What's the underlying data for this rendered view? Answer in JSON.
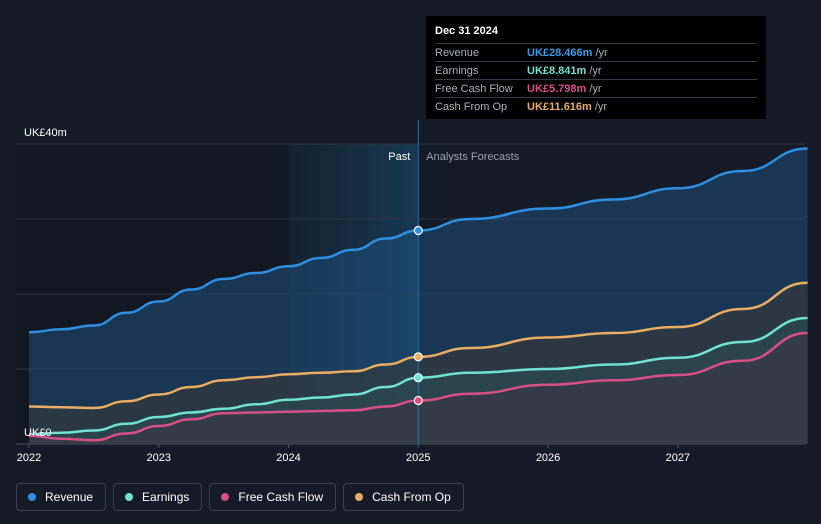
{
  "tooltip": {
    "date": "Dec 31 2024",
    "rows": [
      {
        "label": "Revenue",
        "value": "UK£28.466m",
        "unit": "/yr",
        "color": "#3b9be8"
      },
      {
        "label": "Earnings",
        "value": "UK£8.841m",
        "unit": "/yr",
        "color": "#6fe3cf"
      },
      {
        "label": "Free Cash Flow",
        "value": "UK£5.798m",
        "unit": "/yr",
        "color": "#d84f86"
      },
      {
        "label": "Cash From Op",
        "value": "UK£11.616m",
        "unit": "/yr",
        "color": "#e8ac62"
      }
    ]
  },
  "legend": [
    {
      "label": "Revenue",
      "color": "#2e8ee0"
    },
    {
      "label": "Earnings",
      "color": "#6fe3cf"
    },
    {
      "label": "Free Cash Flow",
      "color": "#d84f86"
    },
    {
      "label": "Cash From Op",
      "color": "#e8ac62"
    }
  ],
  "chart_data": {
    "type": "line",
    "y_top_label": "UK£40m",
    "y_bottom_label": "UK£0",
    "ylim": [
      0,
      40
    ],
    "xlim": [
      2021.9,
      2027.98
    ],
    "x_ticks": [
      2022,
      2023,
      2024,
      2025,
      2026,
      2027
    ],
    "x_tick_labels": [
      "2022",
      "2023",
      "2024",
      "2025",
      "2026",
      "2027"
    ],
    "past_label": "Past",
    "forecast_label": "Analysts Forecasts",
    "divider_x": 2025,
    "highlight_start": 2024,
    "series": [
      {
        "name": "Revenue",
        "color": "#2e8ee0",
        "points": [
          [
            2022,
            14.9
          ],
          [
            2022.25,
            15.3
          ],
          [
            2022.5,
            15.8
          ],
          [
            2022.75,
            17.5
          ],
          [
            2023,
            19.0
          ],
          [
            2023.25,
            20.6
          ],
          [
            2023.5,
            22.0
          ],
          [
            2023.75,
            22.8
          ],
          [
            2024,
            23.7
          ],
          [
            2024.25,
            24.8
          ],
          [
            2024.5,
            25.9
          ],
          [
            2024.75,
            27.4
          ],
          [
            2025,
            28.466
          ],
          [
            2025.4,
            30.0
          ],
          [
            2026,
            31.4
          ],
          [
            2026.5,
            32.6
          ],
          [
            2027,
            34.1
          ],
          [
            2027.5,
            36.4
          ],
          [
            2028,
            39.4
          ]
        ]
      },
      {
        "name": "Cash From Op",
        "color": "#e8ac62",
        "points": [
          [
            2022,
            5.0
          ],
          [
            2022.25,
            4.9
          ],
          [
            2022.5,
            4.8
          ],
          [
            2022.75,
            5.7
          ],
          [
            2023,
            6.6
          ],
          [
            2023.25,
            7.6
          ],
          [
            2023.5,
            8.5
          ],
          [
            2023.75,
            8.9
          ],
          [
            2024,
            9.3
          ],
          [
            2024.25,
            9.5
          ],
          [
            2024.5,
            9.7
          ],
          [
            2024.75,
            10.6
          ],
          [
            2025,
            11.616
          ],
          [
            2025.4,
            12.8
          ],
          [
            2026,
            14.2
          ],
          [
            2026.5,
            14.8
          ],
          [
            2027,
            15.6
          ],
          [
            2027.5,
            18.0
          ],
          [
            2028,
            21.5
          ]
        ]
      },
      {
        "name": "Earnings",
        "color": "#6fe3cf",
        "points": [
          [
            2022,
            1.3
          ],
          [
            2022.25,
            1.5
          ],
          [
            2022.5,
            1.8
          ],
          [
            2022.75,
            2.7
          ],
          [
            2023,
            3.6
          ],
          [
            2023.25,
            4.2
          ],
          [
            2023.5,
            4.7
          ],
          [
            2023.75,
            5.3
          ],
          [
            2024,
            5.9
          ],
          [
            2024.25,
            6.2
          ],
          [
            2024.5,
            6.6
          ],
          [
            2024.75,
            7.6
          ],
          [
            2025,
            8.841
          ],
          [
            2025.4,
            9.5
          ],
          [
            2026,
            10.0
          ],
          [
            2026.5,
            10.6
          ],
          [
            2027,
            11.5
          ],
          [
            2027.5,
            13.6
          ],
          [
            2028,
            16.8
          ]
        ]
      },
      {
        "name": "Free Cash Flow",
        "color": "#d84f86",
        "points": [
          [
            2022,
            1.1
          ],
          [
            2022.25,
            0.7
          ],
          [
            2022.5,
            0.5
          ],
          [
            2022.75,
            1.4
          ],
          [
            2023,
            2.4
          ],
          [
            2023.25,
            3.3
          ],
          [
            2023.5,
            4.1
          ],
          [
            2023.75,
            4.2
          ],
          [
            2024,
            4.3
          ],
          [
            2024.25,
            4.4
          ],
          [
            2024.5,
            4.5
          ],
          [
            2024.75,
            5.0
          ],
          [
            2025,
            5.798
          ],
          [
            2025.4,
            6.7
          ],
          [
            2026,
            7.9
          ],
          [
            2026.5,
            8.5
          ],
          [
            2027,
            9.2
          ],
          [
            2027.5,
            11.1
          ],
          [
            2028,
            14.8
          ]
        ]
      }
    ]
  }
}
